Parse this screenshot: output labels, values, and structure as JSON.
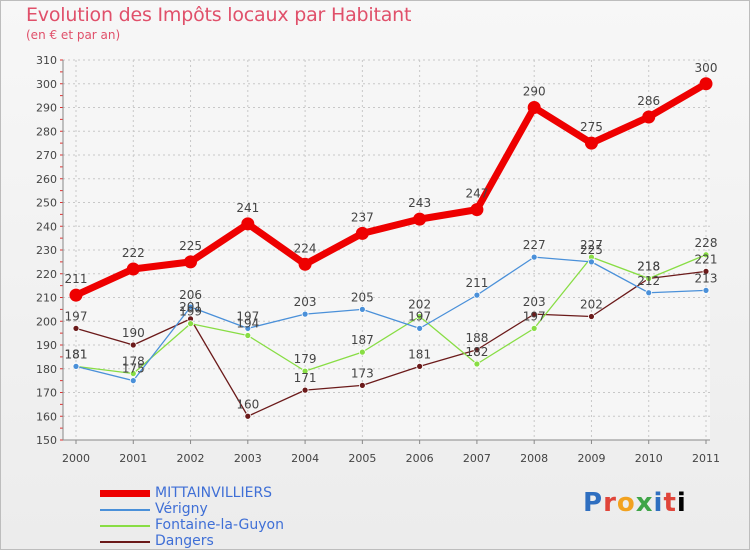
{
  "chart_data": {
    "type": "line",
    "title": "Evolution des Impôts locaux par Habitant",
    "subtitle": "(en € et par an)",
    "categories": [
      "2000",
      "2001",
      "2002",
      "2003",
      "2004",
      "2005",
      "2006",
      "2007",
      "2008",
      "2009",
      "2010",
      "2011"
    ],
    "ylim": [
      150,
      310
    ],
    "yticks": [
      150,
      160,
      170,
      180,
      190,
      200,
      210,
      220,
      230,
      240,
      250,
      260,
      270,
      280,
      290,
      300,
      310
    ],
    "grid": true,
    "series": [
      {
        "name": "MITTAINVILLIERS",
        "color": "#ee0000",
        "emphasis": true,
        "values": [
          211,
          222,
          225,
          241,
          224,
          237,
          243,
          247,
          290,
          275,
          286,
          300
        ]
      },
      {
        "name": "Vérigny",
        "color": "#4a90d9",
        "values": [
          181,
          175,
          206,
          197,
          203,
          205,
          197,
          211,
          227,
          225,
          212,
          213
        ]
      },
      {
        "name": "Fontaine-la-Guyon",
        "color": "#88dd44",
        "values": [
          181,
          178,
          199,
          194,
          179,
          187,
          202,
          182,
          197,
          227,
          218,
          228
        ]
      },
      {
        "name": "Dangers",
        "color": "#6b1a1a",
        "values": [
          197,
          190,
          201,
          160,
          171,
          173,
          181,
          188,
          203,
          202,
          218,
          221
        ]
      }
    ],
    "data_labels": [
      [
        "211",
        "222",
        "225",
        "241",
        "224",
        "237",
        "243",
        "247",
        "290",
        "275",
        "286",
        "300"
      ],
      [
        "181",
        "175",
        "206",
        "197",
        "203",
        "205",
        "197",
        "211",
        "227",
        "225",
        "212",
        "213"
      ],
      [
        "181",
        "178",
        "199",
        "194",
        "179",
        "187",
        "202",
        "182",
        "197",
        "227",
        "218",
        "228"
      ],
      [
        "197",
        "190",
        "201",
        "160",
        "171",
        "173",
        "181",
        "188",
        "203",
        "202",
        "218",
        "221"
      ]
    ],
    "legend_position": "bottom-left"
  },
  "logo": {
    "letters": [
      "P",
      "r",
      "o",
      "x",
      "i",
      "t",
      "i"
    ]
  }
}
